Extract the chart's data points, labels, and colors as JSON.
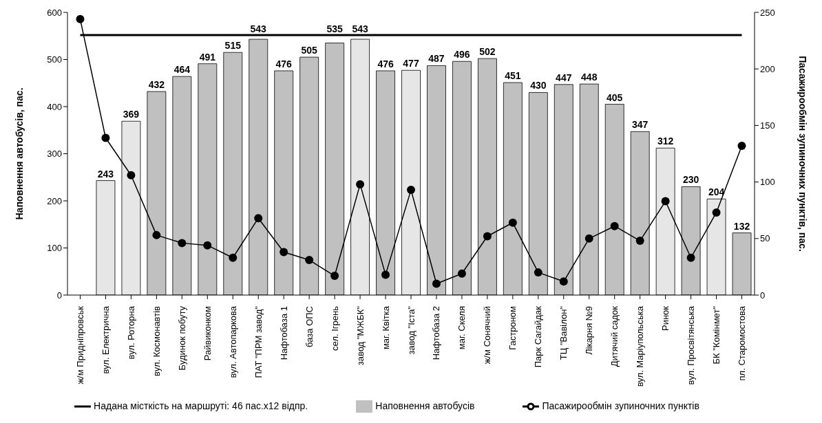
{
  "chart_data": {
    "type": "bar",
    "categories": [
      "ж/м Придніпровськ",
      "вул. Електрична",
      "вул. Роторна",
      "вул. Космонавтів",
      "Будинок побуту",
      "Райвиконком",
      "вул. Автопаркова",
      "ПАТ \"ПРМ завод\"",
      "Нафтобаза 1",
      "база ОПС",
      "сел. Ігрень",
      "завод \"МЖБК\"",
      "маг. Квітка",
      "завод \"Іста\"",
      "Нафтобаза 2",
      "маг. Скеля",
      "ж/м Сонячний",
      "Гастроном",
      "Парк Сагайдак",
      "ТЦ \"Вавілон\"",
      "Лікарня №9",
      "Дитячий садок",
      "вул. Маріупольська",
      "Ринок",
      "вул. Просвітянська",
      "БК \"Комінмет\"",
      "пл. Старомостова"
    ],
    "ylabel": "Наповнення автобусів, пас.",
    "y2label": "Пасажирообмін зупиночних пунктів, пас.",
    "ylim": [
      0,
      600
    ],
    "yticks": [
      0,
      100,
      200,
      300,
      400,
      500,
      600
    ],
    "y2lim": [
      0,
      250
    ],
    "y2ticks": [
      0,
      50,
      100,
      150,
      200,
      250
    ],
    "legend": "bottom",
    "series": [
      {
        "name": "Наповнення автобусів",
        "color": "#c0c0c0",
        "colors": [
          "#c0c0c0",
          "#e6e6e6",
          "#e6e6e6",
          "#c0c0c0",
          "#c0c0c0",
          "#c0c0c0",
          "#c0c0c0",
          "#c0c0c0",
          "#c0c0c0",
          "#c0c0c0",
          "#c0c0c0",
          "#e6e6e6",
          "#c0c0c0",
          "#e6e6e6",
          "#c0c0c0",
          "#c0c0c0",
          "#c0c0c0",
          "#c0c0c0",
          "#c0c0c0",
          "#c0c0c0",
          "#c0c0c0",
          "#c0c0c0",
          "#c0c0c0",
          "#e6e6e6",
          "#c0c0c0",
          "#e6e6e6",
          "#c0c0c0"
        ],
        "data_labels": true,
        "values": [
          null,
          243,
          369,
          432,
          464,
          491,
          515,
          543,
          476,
          505,
          535,
          543,
          476,
          477,
          487,
          496,
          502,
          451,
          430,
          447,
          448,
          405,
          347,
          312,
          230,
          204,
          132
        ]
      },
      {
        "name": "Надана місткість на маршруті: 46 пас.x12 відпр.",
        "type": "line",
        "color": "#000000",
        "marker": "none",
        "values": [
          552,
          552,
          552,
          552,
          552,
          552,
          552,
          552,
          552,
          552,
          552,
          552,
          552,
          552,
          552,
          552,
          552,
          552,
          552,
          552,
          552,
          552,
          552,
          552,
          552,
          552,
          552
        ]
      },
      {
        "name": "Пасажирообмін зупиночних пунктів",
        "type": "line",
        "axis": "y2",
        "color": "#000000",
        "marker": "circle",
        "values": [
          244,
          139,
          106,
          53,
          46,
          44,
          33,
          68,
          38,
          31,
          17,
          98,
          18,
          93,
          10,
          19,
          52,
          64,
          20,
          12,
          50,
          61,
          48,
          83,
          33,
          73,
          132
        ]
      }
    ]
  }
}
